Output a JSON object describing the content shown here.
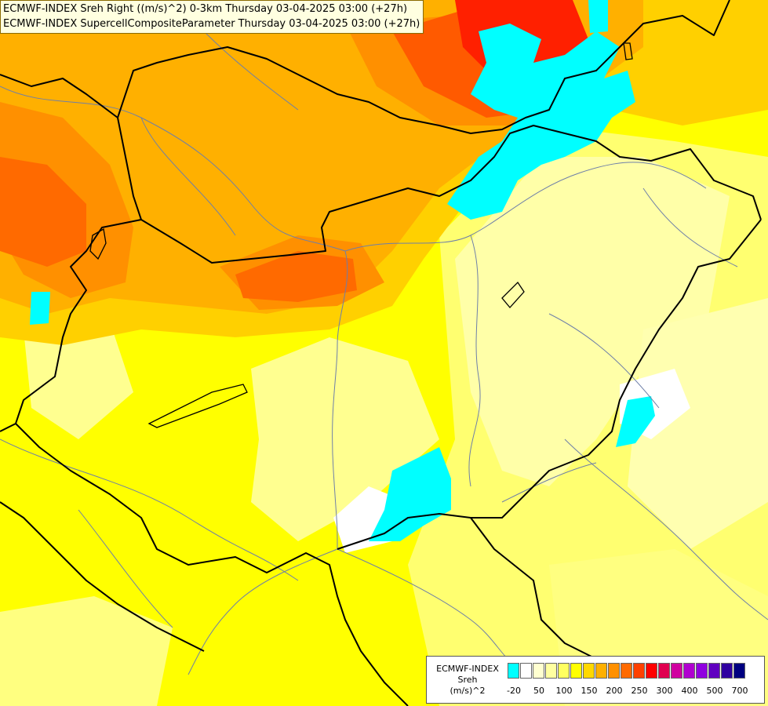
{
  "header": {
    "line1": "ECMWF-INDEX Sreh Right ((m/s)^2) 0-3km Thursday 03-04-2025 03:00 (+27h)",
    "line2": "ECMWF-INDEX SupercellCompositeParameter Thursday 03-04-2025 03:00 (+27h)"
  },
  "legend": {
    "name_line1": "ECMWF-INDEX",
    "name_line2": "Sreh",
    "name_line3": "(m/s)^2",
    "colors": [
      "#00ffff",
      "#ffffff",
      "#ffffd0",
      "#ffffa0",
      "#ffff60",
      "#ffff00",
      "#ffd800",
      "#ffb000",
      "#ff9000",
      "#ff6a00",
      "#ff4000",
      "#ff0000",
      "#e00050",
      "#d000a0",
      "#b000d0",
      "#9000e0",
      "#6000c0",
      "#3000a0",
      "#000080"
    ],
    "ticks": [
      "-20",
      "50",
      "100",
      "150",
      "200",
      "250",
      "300",
      "400",
      "500",
      "700"
    ]
  },
  "map": {
    "field_colors": {
      "base": "#ffff00",
      "light_yellow": "#ffff66",
      "pale": "#ffffb0",
      "white": "#ffffff",
      "amber": "#ffd200",
      "orange": "#ffb000",
      "dark_orange": "#ff8c00",
      "red_orange": "#ff5a00",
      "red": "#ff2000",
      "cyan": "#00ffff",
      "border": "#000000",
      "river": "#6e7fa8"
    }
  }
}
